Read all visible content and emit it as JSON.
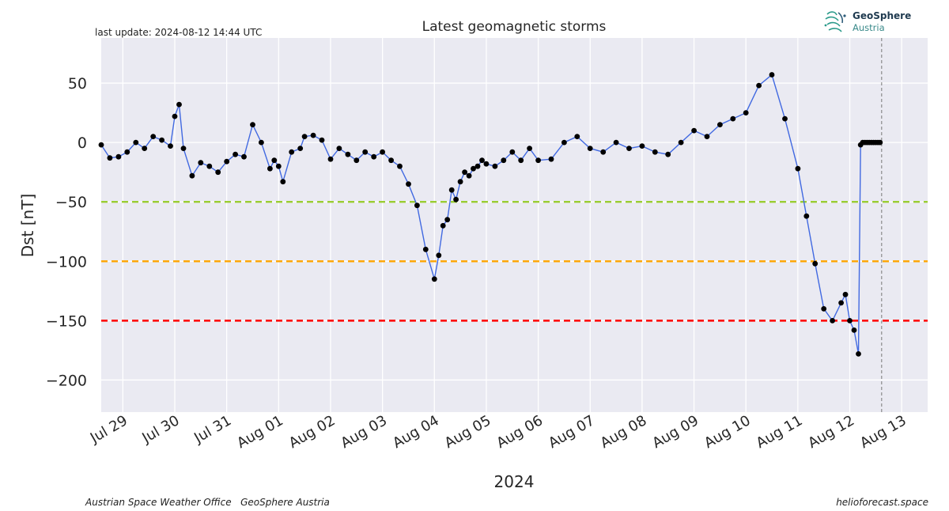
{
  "header": {
    "update_text": "last update: 2024-08-12 14:44 UTC",
    "logo_name": "GeoSphere",
    "logo_sub": "Austria"
  },
  "footer": {
    "left_text": "Austrian Space Weather Office   GeoSphere Austria",
    "right_text": "helioforecast.space"
  },
  "chart_data": {
    "type": "line",
    "title": "Latest geomagnetic storms",
    "xlabel": "2024",
    "ylabel": "Dst [nT]",
    "xlim": [
      "2024-07-28T14:00",
      "2024-08-13T12:00"
    ],
    "ylim": [
      -227,
      88
    ],
    "yticks": [
      50,
      0,
      -50,
      -100,
      -150,
      -200
    ],
    "ytick_labels": [
      "50",
      "0",
      "−50",
      "−100",
      "−150",
      "−200"
    ],
    "xticks": [
      "2024-07-29",
      "2024-07-30",
      "2024-07-31",
      "2024-08-01",
      "2024-08-02",
      "2024-08-03",
      "2024-08-04",
      "2024-08-05",
      "2024-08-06",
      "2024-08-07",
      "2024-08-08",
      "2024-08-09",
      "2024-08-10",
      "2024-08-11",
      "2024-08-12",
      "2024-08-13"
    ],
    "xtick_labels": [
      "Jul 29",
      "Jul 30",
      "Jul 31",
      "Aug 01",
      "Aug 02",
      "Aug 03",
      "Aug 04",
      "Aug 05",
      "Aug 06",
      "Aug 07",
      "Aug 08",
      "Aug 09",
      "Aug 10",
      "Aug 11",
      "Aug 12",
      "Aug 13"
    ],
    "grid": true,
    "background": "#eaeaf2",
    "series_color": "#4169e1",
    "marker_color": "#000000",
    "thresholds": [
      {
        "value": -50,
        "color": "#9acd32"
      },
      {
        "value": -100,
        "color": "#ffa500"
      },
      {
        "value": -150,
        "color": "#ff0000"
      }
    ],
    "now_line": {
      "x": "2024-08-12T14:44",
      "color": "#777777"
    },
    "series": [
      {
        "x": [
          "2024-07-28T14:00",
          "2024-07-28T18:00",
          "2024-07-28T22:00",
          "2024-07-29T02:00",
          "2024-07-29T06:00",
          "2024-07-29T10:00",
          "2024-07-29T14:00",
          "2024-07-29T18:00",
          "2024-07-29T22:00",
          "2024-07-30T00:00",
          "2024-07-30T02:00",
          "2024-07-30T04:00",
          "2024-07-30T08:00",
          "2024-07-30T12:00",
          "2024-07-30T16:00",
          "2024-07-30T20:00",
          "2024-07-31T00:00",
          "2024-07-31T04:00",
          "2024-07-31T08:00",
          "2024-07-31T12:00",
          "2024-07-31T16:00",
          "2024-07-31T20:00",
          "2024-07-31T22:00",
          "2024-08-01T00:00",
          "2024-08-01T02:00",
          "2024-08-01T06:00",
          "2024-08-01T10:00",
          "2024-08-01T12:00",
          "2024-08-01T16:00",
          "2024-08-01T20:00",
          "2024-08-02T00:00",
          "2024-08-02T04:00",
          "2024-08-02T08:00",
          "2024-08-02T12:00",
          "2024-08-02T16:00",
          "2024-08-02T20:00",
          "2024-08-03T00:00",
          "2024-08-03T04:00",
          "2024-08-03T08:00",
          "2024-08-03T12:00",
          "2024-08-03T16:00",
          "2024-08-03T20:00",
          "2024-08-04T00:00",
          "2024-08-04T02:00",
          "2024-08-04T04:00",
          "2024-08-04T06:00",
          "2024-08-04T08:00",
          "2024-08-04T10:00",
          "2024-08-04T12:00",
          "2024-08-04T14:00",
          "2024-08-04T16:00",
          "2024-08-04T18:00",
          "2024-08-04T20:00",
          "2024-08-04T22:00",
          "2024-08-05T00:00",
          "2024-08-05T04:00",
          "2024-08-05T08:00",
          "2024-08-05T12:00",
          "2024-08-05T16:00",
          "2024-08-05T20:00",
          "2024-08-06T00:00",
          "2024-08-06T06:00",
          "2024-08-06T12:00",
          "2024-08-06T18:00",
          "2024-08-07T00:00",
          "2024-08-07T06:00",
          "2024-08-07T12:00",
          "2024-08-07T18:00",
          "2024-08-08T00:00",
          "2024-08-08T06:00",
          "2024-08-08T12:00",
          "2024-08-08T18:00",
          "2024-08-09T00:00",
          "2024-08-09T06:00",
          "2024-08-09T12:00",
          "2024-08-09T18:00",
          "2024-08-10T00:00",
          "2024-08-10T06:00",
          "2024-08-10T12:00",
          "2024-08-10T18:00",
          "2024-08-11T00:00",
          "2024-08-11T04:00",
          "2024-08-11T08:00",
          "2024-08-11T12:00",
          "2024-08-11T16:00",
          "2024-08-11T20:00",
          "2024-08-11T22:00",
          "2024-08-12T00:00",
          "2024-08-12T02:00",
          "2024-08-12T04:00",
          "2024-08-12T05:00",
          "2024-08-12T06:00",
          "2024-08-12T07:00",
          "2024-08-12T08:00",
          "2024-08-12T09:00",
          "2024-08-12T10:00",
          "2024-08-12T11:00",
          "2024-08-12T12:00",
          "2024-08-12T13:00",
          "2024-08-12T14:00"
        ],
        "y": [
          -2,
          -13,
          -12,
          -8,
          0,
          -5,
          5,
          2,
          -3,
          22,
          32,
          -5,
          -28,
          -17,
          -20,
          -25,
          -16,
          -10,
          -12,
          15,
          0,
          -22,
          -15,
          -20,
          -33,
          -8,
          -5,
          5,
          6,
          2,
          -14,
          -5,
          -10,
          -15,
          -8,
          -12,
          -8,
          -15,
          -20,
          -35,
          -53,
          -90,
          -115,
          -95,
          -70,
          -65,
          -40,
          -48,
          -33,
          -25,
          -28,
          -22,
          -20,
          -15,
          -18,
          -20,
          -15,
          -8,
          -15,
          -5,
          -15,
          -14,
          0,
          5,
          -5,
          -8,
          0,
          -5,
          -3,
          -8,
          -10,
          0,
          10,
          5,
          15,
          20,
          25,
          48,
          57,
          20,
          -22,
          -62,
          -102,
          -140,
          -150,
          -135,
          -128,
          -150,
          -158,
          -178,
          -2,
          0,
          0,
          0,
          0,
          0,
          0,
          0,
          0,
          0
        ]
      }
    ]
  }
}
